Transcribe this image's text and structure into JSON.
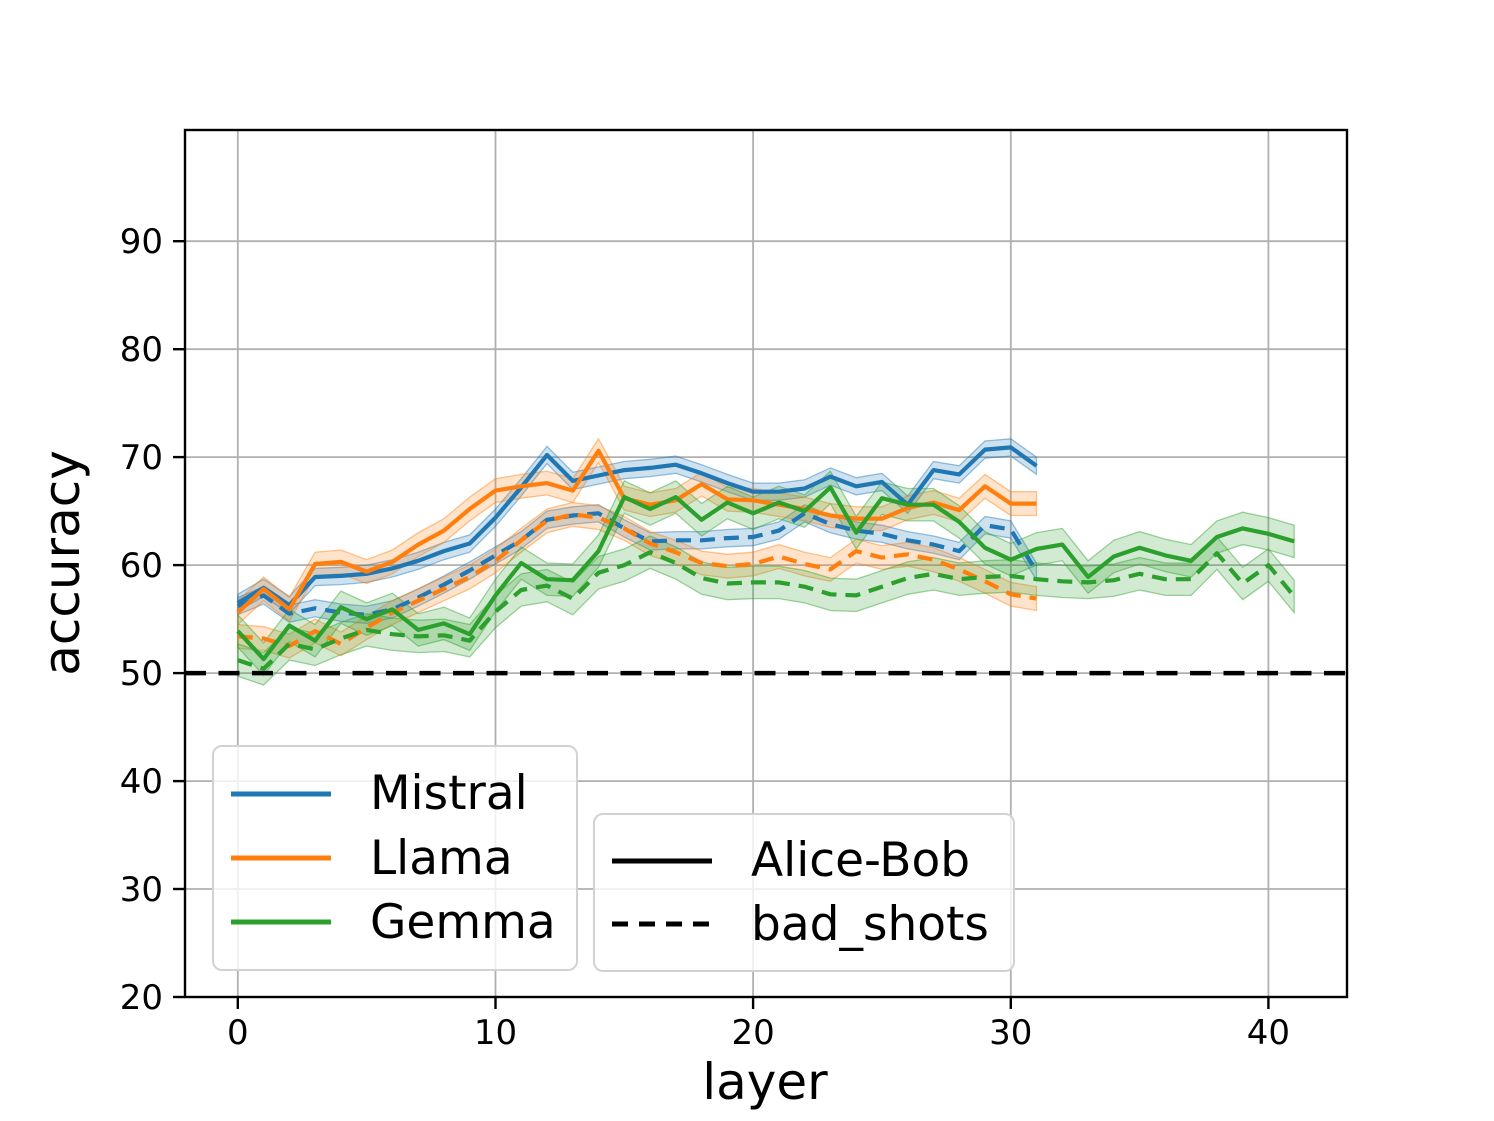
{
  "figure": {
    "xlabel": "layer",
    "ylabel": "accuracy",
    "background": "#ffffff",
    "grid_color": "#b0b0b0",
    "spine_color": "#000000"
  },
  "chart_data": {
    "type": "line",
    "title": "",
    "xlabel": "layer",
    "ylabel": "accuracy",
    "xlim": [
      -2.05,
      43.05
    ],
    "ylim": [
      20,
      100.3
    ],
    "x_ticks": [
      0,
      10,
      20,
      30,
      40
    ],
    "y_ticks": [
      20,
      30,
      40,
      50,
      60,
      70,
      80,
      90
    ],
    "grid": true,
    "legend_position": "lower left",
    "baseline": {
      "y": 50,
      "color": "#000000",
      "style": "dashed"
    },
    "series": [
      {
        "name": "Mistral Alice-Bob",
        "model": "Mistral",
        "condition": "Alice-Bob",
        "color": "#1f77b4",
        "dash": "solid",
        "band": 0.8,
        "x_start": 0,
        "x_step": 1,
        "y": [
          56.5,
          57.9,
          56.3,
          58.9,
          59.0,
          59.2,
          59.7,
          60.4,
          61.3,
          62.0,
          64.4,
          67.2,
          70.2,
          67.8,
          68.3,
          68.8,
          69.0,
          69.3,
          68.5,
          67.6,
          66.8,
          66.8,
          67.1,
          68.2,
          67.3,
          67.7,
          65.6,
          68.8,
          68.4,
          70.7,
          70.9,
          69.2
        ]
      },
      {
        "name": "Mistral bad_shots",
        "model": "Mistral",
        "condition": "bad_shots",
        "color": "#1f77b4",
        "dash": "dashed",
        "band": 0.8,
        "x_start": 0,
        "x_step": 1,
        "y": [
          56.2,
          57.2,
          55.5,
          56.0,
          55.6,
          55.4,
          55.9,
          57.0,
          58.2,
          59.5,
          60.9,
          62.3,
          64.2,
          64.6,
          64.8,
          63.4,
          62.2,
          62.3,
          62.3,
          62.5,
          62.6,
          63.2,
          64.8,
          63.8,
          63.2,
          62.9,
          62.3,
          61.9,
          61.3,
          63.7,
          63.3,
          59.4
        ]
      },
      {
        "name": "Llama Alice-Bob",
        "model": "Llama",
        "condition": "Alice-Bob",
        "color": "#ff7f0e",
        "dash": "solid",
        "band": 1.1,
        "x_start": 0,
        "x_step": 1,
        "y": [
          55.6,
          57.8,
          55.9,
          60.1,
          60.3,
          59.4,
          60.3,
          61.9,
          63.2,
          65.2,
          66.9,
          67.3,
          67.6,
          66.9,
          70.6,
          66.2,
          65.6,
          66.0,
          67.5,
          66.1,
          66.0,
          65.6,
          65.2,
          64.6,
          64.3,
          64.3,
          65.3,
          65.8,
          65.1,
          67.3,
          65.7,
          65.7
        ]
      },
      {
        "name": "Llama bad_shots",
        "model": "Llama",
        "condition": "bad_shots",
        "color": "#ff7f0e",
        "dash": "dashed",
        "band": 1.1,
        "x_start": 0,
        "x_step": 1,
        "y": [
          53.4,
          53.2,
          52.5,
          53.9,
          52.7,
          54.2,
          55.6,
          56.7,
          57.8,
          58.9,
          60.4,
          62.3,
          64.1,
          64.7,
          64.4,
          63.4,
          62.0,
          61.2,
          60.2,
          59.9,
          60.1,
          60.8,
          60.1,
          59.6,
          61.3,
          60.7,
          61.0,
          60.5,
          59.6,
          58.5,
          57.3,
          56.9
        ]
      },
      {
        "name": "Gemma Alice-Bob",
        "model": "Gemma",
        "condition": "Alice-Bob",
        "color": "#2ca02c",
        "dash": "solid",
        "band": 1.5,
        "x_start": 0,
        "x_step": 1,
        "y": [
          53.9,
          51.3,
          54.4,
          53.0,
          56.1,
          55.0,
          55.9,
          54.0,
          54.6,
          53.6,
          57.2,
          60.2,
          58.7,
          58.6,
          61.3,
          66.3,
          65.2,
          66.3,
          64.2,
          65.8,
          64.8,
          65.8,
          65.0,
          67.2,
          63.0,
          66.2,
          65.6,
          65.6,
          64.0,
          61.6,
          60.5,
          61.5,
          61.9,
          58.9,
          60.8,
          61.6,
          60.9,
          60.4,
          62.6,
          63.4,
          62.9,
          62.2
        ]
      },
      {
        "name": "Gemma bad_shots",
        "model": "Gemma",
        "condition": "bad_shots",
        "color": "#2ca02c",
        "dash": "dashed",
        "band": 1.5,
        "x_start": 0,
        "x_step": 1,
        "y": [
          51.2,
          50.4,
          52.7,
          52.2,
          53.2,
          54.0,
          53.6,
          53.4,
          53.5,
          53.0,
          55.7,
          57.7,
          58.1,
          56.9,
          59.3,
          60.0,
          61.2,
          60.2,
          58.8,
          58.3,
          58.4,
          58.4,
          58.0,
          57.3,
          57.2,
          58.0,
          58.8,
          59.2,
          58.7,
          58.9,
          59.0,
          58.7,
          58.5,
          58.4,
          58.6,
          59.2,
          58.7,
          58.7,
          61.1,
          58.3,
          60.0,
          57.1
        ]
      }
    ]
  },
  "legends": {
    "models": {
      "items": [
        {
          "label": "Mistral",
          "color": "#1f77b4",
          "dash": "solid"
        },
        {
          "label": "Llama",
          "color": "#ff7f0e",
          "dash": "solid"
        },
        {
          "label": "Gemma",
          "color": "#2ca02c",
          "dash": "solid"
        }
      ]
    },
    "styles": {
      "items": [
        {
          "label": "Alice-Bob",
          "color": "#000000",
          "dash": "solid"
        },
        {
          "label": "bad_shots",
          "color": "#000000",
          "dash": "dashed"
        }
      ]
    }
  }
}
